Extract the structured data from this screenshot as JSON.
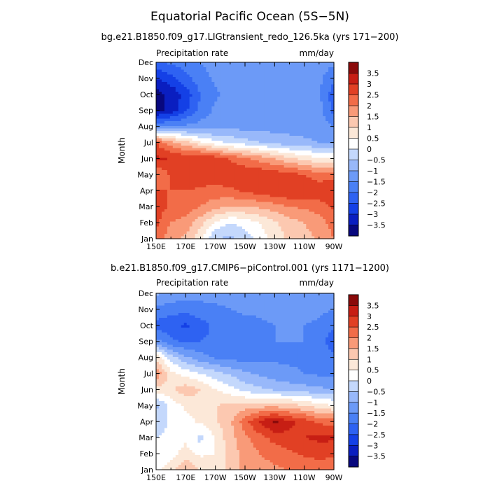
{
  "figure_title": "Equatorial Pacific Ocean (5S−5N)",
  "colors": {
    "levels": [
      "#08087e",
      "#0a1ec0",
      "#1440e6",
      "#2e62f2",
      "#4a80f5",
      "#6c9af7",
      "#98b8fa",
      "#c4d8fc",
      "#ffffff",
      "#fce8d8",
      "#fcc8b0",
      "#f99a78",
      "#f26c48",
      "#e14024",
      "#c71e14",
      "#8a0a0a"
    ]
  },
  "chart_data": [
    {
      "type": "heatmap",
      "title": "bg.e21.B1850.f09_g17.LIGtransient_redo_126.5ka (yrs 171−200)",
      "left_label": "Precipitation rate",
      "right_label": "mm/day",
      "ylabel": "Month",
      "xlabel": "",
      "x_ticks": [
        "150E",
        "170E",
        "170W",
        "150W",
        "130W",
        "110W",
        "90W"
      ],
      "y_ticks": [
        "Jan",
        "Feb",
        "Mar",
        "Apr",
        "May",
        "Jun",
        "Jul",
        "Aug",
        "Sep",
        "Oct",
        "Nov",
        "Dec"
      ],
      "x": [
        150,
        160,
        170,
        180,
        190,
        200,
        210,
        220,
        230,
        240,
        250,
        260,
        270
      ],
      "x_units": "degrees east",
      "values": [
        [
          2.4,
          1.6,
          1.4,
          0.6,
          -0.5,
          -0.6,
          -0.3,
          0.2,
          0.7,
          1.1,
          1.3,
          1.6,
          2.0
        ],
        [
          2.6,
          2.0,
          1.8,
          1.2,
          0.4,
          0.0,
          0.2,
          0.5,
          0.9,
          1.3,
          1.5,
          1.8,
          2.2
        ],
        [
          2.8,
          2.4,
          2.3,
          2.0,
          1.7,
          1.5,
          1.5,
          1.6,
          1.8,
          2.0,
          2.1,
          2.2,
          2.6
        ],
        [
          2.5,
          2.5,
          2.5,
          2.4,
          2.3,
          2.4,
          2.6,
          2.8,
          2.9,
          3.0,
          3.0,
          2.9,
          3.0
        ],
        [
          1.9,
          2.6,
          2.9,
          2.9,
          2.8,
          2.9,
          2.9,
          2.9,
          2.8,
          2.7,
          2.5,
          2.2,
          2.2
        ],
        [
          3.1,
          3.0,
          2.9,
          3.0,
          2.8,
          2.4,
          2.1,
          1.8,
          1.5,
          1.1,
          0.8,
          0.6,
          0.6
        ],
        [
          2.5,
          1.7,
          1.2,
          0.6,
          0.2,
          -0.1,
          -0.3,
          -0.5,
          -0.7,
          -0.8,
          -0.9,
          -1.0,
          -1.0
        ],
        [
          -1.5,
          -1.5,
          -1.4,
          -1.3,
          -1.3,
          -1.2,
          -1.2,
          -1.2,
          -1.2,
          -1.2,
          -1.2,
          -1.2,
          -1.5
        ],
        [
          -3.7,
          -3.3,
          -2.6,
          -1.8,
          -1.4,
          -1.2,
          -1.2,
          -1.2,
          -1.2,
          -1.2,
          -1.2,
          -1.3,
          -2.2
        ],
        [
          -3.7,
          -3.4,
          -2.8,
          -2.0,
          -1.6,
          -1.3,
          -1.2,
          -1.2,
          -1.2,
          -1.2,
          -1.2,
          -1.4,
          -2.3
        ],
        [
          -3.0,
          -2.7,
          -2.2,
          -1.7,
          -1.4,
          -1.2,
          -1.2,
          -1.2,
          -1.2,
          -1.2,
          -1.2,
          -1.4,
          -1.9
        ],
        [
          -2.1,
          -1.9,
          -1.7,
          -1.5,
          -1.3,
          -1.2,
          -1.2,
          -1.2,
          -1.2,
          -1.2,
          -1.2,
          -1.2,
          -1.4
        ]
      ],
      "colorbar": {
        "ticks": [
          "3.5",
          "3",
          "2.5",
          "2",
          "1.5",
          "1",
          "0.5",
          "0",
          "−0.5",
          "−1",
          "−1.5",
          "−2",
          "−2.5",
          "−3",
          "−3.5"
        ]
      }
    },
    {
      "type": "heatmap",
      "title": "b.e21.B1850.f09_g17.CMIP6−piControl.001 (yrs 1171−1200)",
      "left_label": "Precipitation rate",
      "right_label": "mm/day",
      "ylabel": "Month",
      "xlabel": "",
      "x_ticks": [
        "150E",
        "170E",
        "170W",
        "150W",
        "130W",
        "110W",
        "90W"
      ],
      "y_ticks": [
        "Jan",
        "Feb",
        "Mar",
        "Apr",
        "May",
        "Jun",
        "Jul",
        "Aug",
        "Sep",
        "Oct",
        "Nov",
        "Dec"
      ],
      "x": [
        150,
        160,
        170,
        180,
        190,
        200,
        210,
        220,
        230,
        240,
        250,
        260,
        270
      ],
      "x_units": "degrees east",
      "values": [
        [
          0.3,
          0.8,
          1.5,
          1.0,
          0.7,
          1.2,
          1.7,
          1.8,
          1.9,
          2.0,
          2.0,
          2.0,
          2.0
        ],
        [
          0.1,
          0.3,
          0.7,
          0.4,
          0.5,
          1.2,
          1.7,
          2.0,
          2.2,
          2.4,
          2.6,
          2.8,
          2.6
        ],
        [
          0.0,
          0.2,
          0.4,
          -0.2,
          0.6,
          1.3,
          1.9,
          2.3,
          2.7,
          2.9,
          3.0,
          3.1,
          3.1
        ],
        [
          -0.4,
          0.1,
          0.3,
          0.6,
          0.9,
          1.4,
          2.3,
          3.1,
          3.6,
          3.1,
          2.8,
          2.4,
          2.3
        ],
        [
          -0.6,
          0.2,
          0.6,
          0.9,
          1.0,
          1.1,
          1.2,
          1.3,
          1.3,
          1.2,
          1.0,
          0.7,
          0.5
        ],
        [
          0.8,
          0.9,
          1.3,
          1.0,
          0.5,
          0.2,
          -0.2,
          -0.4,
          -0.6,
          -0.7,
          -0.8,
          -0.9,
          -1.0
        ],
        [
          1.9,
          0.7,
          0.3,
          0.0,
          -0.3,
          -0.6,
          -0.9,
          -1.1,
          -1.3,
          -1.4,
          -1.5,
          -1.6,
          -1.6
        ],
        [
          0.9,
          -0.3,
          -0.9,
          -1.3,
          -1.6,
          -1.7,
          -1.7,
          -1.7,
          -1.6,
          -1.6,
          -1.6,
          -1.6,
          -1.8
        ],
        [
          -1.3,
          -1.9,
          -2.1,
          -2.0,
          -1.9,
          -1.8,
          -1.7,
          -1.6,
          -1.5,
          -1.5,
          -1.5,
          -1.6,
          -2.5
        ],
        [
          -2.2,
          -2.3,
          -2.6,
          -2.2,
          -1.9,
          -1.8,
          -1.7,
          -1.6,
          -1.5,
          -1.5,
          -1.5,
          -1.6,
          -1.9
        ],
        [
          -1.6,
          -1.8,
          -1.8,
          -1.7,
          -1.6,
          -1.5,
          -1.4,
          -1.4,
          -1.3,
          -1.3,
          -1.3,
          -1.4,
          -1.5
        ],
        [
          -0.9,
          -1.1,
          -1.3,
          -1.3,
          -1.3,
          -1.3,
          -1.2,
          -1.2,
          -1.2,
          -1.2,
          -1.2,
          -1.2,
          -1.3
        ]
      ],
      "colorbar": {
        "ticks": [
          "3.5",
          "3",
          "2.5",
          "2",
          "1.5",
          "1",
          "0.5",
          "0",
          "−0.5",
          "−1",
          "−1.5",
          "−2",
          "−2.5",
          "−3",
          "−3.5"
        ]
      }
    }
  ]
}
